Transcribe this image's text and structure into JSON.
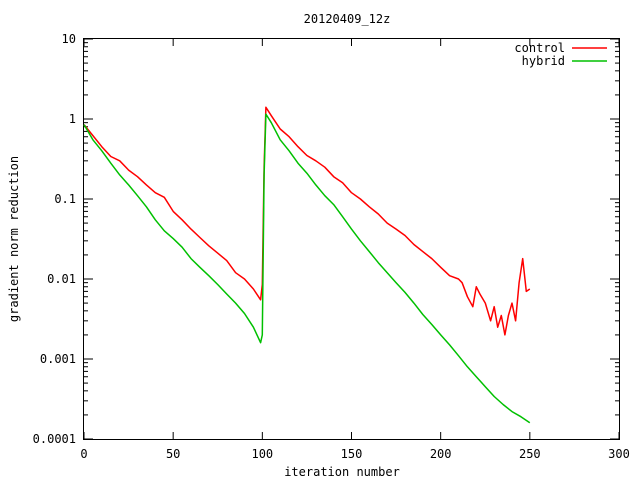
{
  "chart_data": {
    "type": "line",
    "title": "20120409_12z",
    "xlabel": "iteration number",
    "ylabel": "gradient norm reduction",
    "xlim": [
      0,
      300
    ],
    "ylim": [
      0.0001,
      10
    ],
    "yscale": "log",
    "grid": false,
    "legend_position": "top-right",
    "x_ticks": [
      0,
      50,
      100,
      150,
      200,
      250,
      300
    ],
    "x_tick_labels": [
      "0",
      "50",
      "100",
      "150",
      "200",
      "250",
      "300"
    ],
    "y_ticks": [
      0.0001,
      0.001,
      0.01,
      0.1,
      1,
      10
    ],
    "y_tick_labels": [
      "0.0001",
      "0.001",
      "0.01",
      "0.1",
      "1",
      "10"
    ],
    "series": [
      {
        "name": "control",
        "color": "#ff0000",
        "x": [
          0,
          5,
          10,
          15,
          20,
          25,
          30,
          35,
          40,
          45,
          50,
          55,
          60,
          65,
          70,
          75,
          80,
          85,
          90,
          95,
          99,
          100,
          101,
          102,
          105,
          110,
          115,
          120,
          125,
          130,
          135,
          140,
          145,
          150,
          155,
          160,
          165,
          170,
          175,
          180,
          185,
          190,
          195,
          200,
          205,
          210,
          212,
          215,
          218,
          220,
          222,
          225,
          228,
          230,
          232,
          234,
          236,
          238,
          240,
          242,
          244,
          246,
          248,
          250
        ],
        "y": [
          0.85,
          0.62,
          0.45,
          0.34,
          0.3,
          0.23,
          0.19,
          0.15,
          0.12,
          0.105,
          0.07,
          0.055,
          0.042,
          0.033,
          0.026,
          0.021,
          0.017,
          0.012,
          0.01,
          0.0075,
          0.0055,
          0.0085,
          0.25,
          1.4,
          1.1,
          0.75,
          0.6,
          0.45,
          0.35,
          0.3,
          0.25,
          0.19,
          0.16,
          0.12,
          0.1,
          0.08,
          0.065,
          0.05,
          0.042,
          0.035,
          0.027,
          0.022,
          0.018,
          0.014,
          0.011,
          0.01,
          0.009,
          0.006,
          0.0045,
          0.008,
          0.0065,
          0.005,
          0.003,
          0.0045,
          0.0025,
          0.0035,
          0.002,
          0.0035,
          0.005,
          0.003,
          0.009,
          0.018,
          0.007,
          0.0075
        ]
      },
      {
        "name": "hybrid",
        "color": "#00c000",
        "x": [
          0,
          5,
          10,
          15,
          20,
          25,
          30,
          35,
          40,
          45,
          50,
          55,
          60,
          65,
          70,
          75,
          80,
          85,
          90,
          95,
          99,
          100,
          101,
          102,
          105,
          110,
          115,
          120,
          125,
          130,
          135,
          140,
          145,
          150,
          155,
          160,
          165,
          170,
          175,
          180,
          185,
          190,
          195,
          200,
          205,
          210,
          215,
          220,
          225,
          230,
          235,
          240,
          245,
          250
        ],
        "y": [
          0.85,
          0.55,
          0.4,
          0.28,
          0.2,
          0.15,
          0.11,
          0.08,
          0.055,
          0.04,
          0.032,
          0.025,
          0.018,
          0.014,
          0.011,
          0.0085,
          0.0065,
          0.005,
          0.0037,
          0.0025,
          0.0016,
          0.002,
          0.2,
          1.15,
          0.9,
          0.55,
          0.4,
          0.28,
          0.21,
          0.15,
          0.11,
          0.085,
          0.06,
          0.042,
          0.03,
          0.022,
          0.016,
          0.012,
          0.009,
          0.0068,
          0.005,
          0.0036,
          0.0027,
          0.002,
          0.0015,
          0.0011,
          0.0008,
          0.0006,
          0.00045,
          0.00034,
          0.00027,
          0.00022,
          0.00019,
          0.00016
        ]
      }
    ]
  }
}
